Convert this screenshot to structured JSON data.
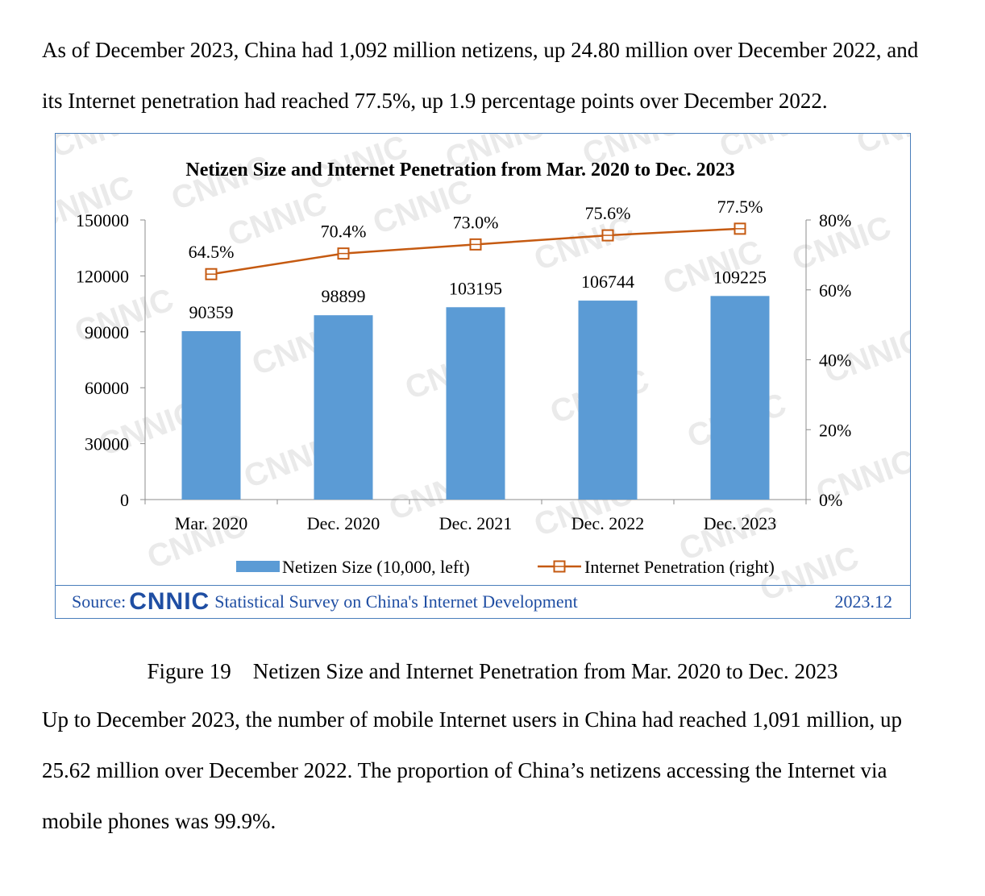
{
  "intro_text": "As of December 2023, China had 1,092 million netizens, up 24.80 million over December 2022, and its Internet penetration had reached 77.5%, up 1.9 percentage points over December 2022.",
  "figure_caption": "Figure 19　Netizen Size and Internet Penetration from Mar. 2020 to Dec. 2023",
  "body_text": "Up to December 2023, the number of mobile Internet users in China had reached 1,091 million, up 25.62 million over December 2022. The proportion of China’s netizens accessing the Internet via mobile phones was 99.9%.",
  "watermark_text": "CNNIC",
  "footer": {
    "source_label": "Source:",
    "logo_text": "CNNIC",
    "survey_text": "Statistical Survey on China's Internet Development",
    "date": "2023.12"
  },
  "colors": {
    "bar": "#5b9bd5",
    "line": "#c55a11",
    "frame": "#4a7ebb",
    "source_text": "#1f4ea3"
  },
  "chart_data": {
    "type": "bar",
    "title": "Netizen Size and Internet Penetration from Mar. 2020 to Dec. 2023",
    "categories": [
      "Mar. 2020",
      "Dec. 2020",
      "Dec. 2021",
      "Dec. 2022",
      "Dec. 2023"
    ],
    "series": [
      {
        "name": "Netizen Size (10,000, left)",
        "type": "bar",
        "axis": "left",
        "values": [
          90359,
          98899,
          103195,
          106744,
          109225
        ],
        "labels": [
          "90359",
          "98899",
          "103195",
          "106744",
          "109225"
        ]
      },
      {
        "name": "Internet Penetration (right)",
        "type": "line",
        "axis": "right",
        "values": [
          64.5,
          70.4,
          73.0,
          75.6,
          77.5
        ],
        "labels": [
          "64.5%",
          "70.4%",
          "73.0%",
          "75.6%",
          "77.5%"
        ]
      }
    ],
    "y_left": {
      "range": [
        0,
        150000
      ],
      "ticks": [
        "0",
        "30000",
        "60000",
        "90000",
        "120000",
        "150000"
      ]
    },
    "y_right": {
      "range": [
        0,
        80
      ],
      "ticks": [
        "0%",
        "20%",
        "40%",
        "60%",
        "80%"
      ]
    },
    "grid": false,
    "legend_position": "bottom"
  }
}
